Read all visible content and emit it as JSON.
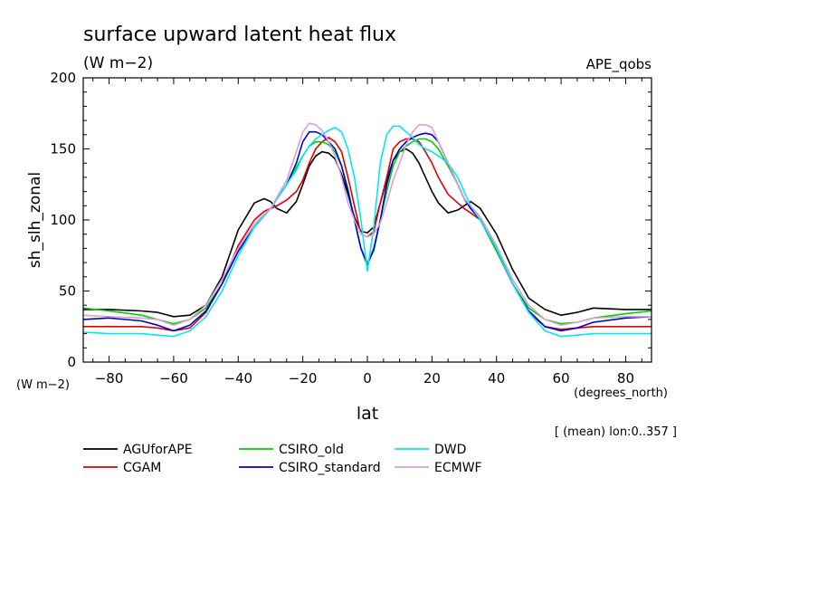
{
  "chart_data": {
    "type": "line",
    "title": "surface upward latent heat flux",
    "subtitle": "(W m−2)",
    "tag": "APE_qobs",
    "ylabel": "sh_slh_zonal",
    "y_unit": "(W m−2)",
    "xlabel": "lat",
    "x_unit": "(degrees_north)",
    "note": "[ (mean) lon:0..357 ]",
    "xlim": [
      -88,
      88
    ],
    "ylim": [
      0,
      200
    ],
    "x_ticks": [
      -80,
      -60,
      -40,
      -20,
      0,
      20,
      40,
      60,
      80
    ],
    "x_tick_labels": [
      "−80",
      "−60",
      "−40",
      "−20",
      "0",
      "20",
      "40",
      "60",
      "80"
    ],
    "y_ticks": [
      0,
      50,
      100,
      150,
      200
    ],
    "y_tick_labels": [
      "0",
      "50",
      "100",
      "150",
      "200"
    ],
    "grid": false,
    "legend_position": "bottom",
    "x": [
      -88,
      -80,
      -70,
      -65,
      -60,
      -55,
      -50,
      -45,
      -40,
      -35,
      -32,
      -30,
      -28,
      -25,
      -22,
      -20,
      -18,
      -16,
      -14,
      -12,
      -10,
      -8,
      -6,
      -4,
      -2,
      0,
      2,
      4,
      6,
      8,
      10,
      12,
      14,
      16,
      18,
      20,
      22,
      25,
      28,
      30,
      32,
      35,
      40,
      45,
      50,
      55,
      60,
      65,
      70,
      80,
      88
    ],
    "series": [
      {
        "name": "AGUforAPE",
        "color": "#000000",
        "values": [
          37,
          37,
          36,
          35,
          32,
          33,
          40,
          60,
          93,
          112,
          115,
          113,
          108,
          105,
          113,
          125,
          138,
          145,
          148,
          147,
          143,
          132,
          118,
          102,
          92,
          91,
          95,
          112,
          128,
          142,
          148,
          150,
          147,
          140,
          130,
          120,
          112,
          105,
          107,
          110,
          113,
          108,
          90,
          65,
          45,
          37,
          33,
          35,
          38,
          37,
          37
        ]
      },
      {
        "name": "CGAM",
        "color": "#e00000",
        "values": [
          25,
          25,
          25,
          24,
          22,
          24,
          35,
          55,
          82,
          100,
          106,
          108,
          110,
          114,
          120,
          128,
          140,
          150,
          155,
          158,
          155,
          148,
          130,
          110,
          90,
          88,
          92,
          112,
          130,
          150,
          155,
          157,
          157,
          155,
          148,
          140,
          130,
          118,
          112,
          108,
          105,
          100,
          80,
          55,
          35,
          25,
          23,
          24,
          25,
          25,
          25
        ]
      },
      {
        "name": "CSIRO_old",
        "color": "#00d000",
        "values": [
          38,
          36,
          33,
          30,
          27,
          30,
          38,
          55,
          78,
          95,
          103,
          108,
          115,
          125,
          137,
          145,
          152,
          155,
          155,
          153,
          148,
          138,
          122,
          100,
          80,
          70,
          78,
          100,
          120,
          138,
          148,
          152,
          155,
          157,
          157,
          155,
          150,
          138,
          125,
          115,
          108,
          100,
          78,
          55,
          38,
          30,
          27,
          28,
          31,
          34,
          36
        ]
      },
      {
        "name": "CSIRO_standard",
        "color": "#0000d0",
        "values": [
          30,
          31,
          29,
          26,
          22,
          26,
          36,
          55,
          78,
          95,
          103,
          108,
          115,
          125,
          140,
          155,
          162,
          162,
          160,
          155,
          150,
          138,
          120,
          100,
          80,
          68,
          80,
          100,
          125,
          142,
          150,
          155,
          158,
          160,
          161,
          160,
          155,
          140,
          125,
          115,
          108,
          100,
          80,
          55,
          36,
          25,
          22,
          24,
          28,
          31,
          32
        ]
      },
      {
        "name": "DWD",
        "color": "#00e8f0",
        "values": [
          21,
          20,
          20,
          19,
          18,
          22,
          32,
          50,
          75,
          95,
          103,
          108,
          115,
          125,
          135,
          145,
          152,
          157,
          160,
          163,
          165,
          162,
          150,
          130,
          100,
          64,
          95,
          140,
          160,
          166,
          166,
          162,
          158,
          153,
          150,
          148,
          145,
          140,
          130,
          120,
          110,
          100,
          80,
          55,
          35,
          22,
          18,
          19,
          20,
          20,
          20
        ]
      },
      {
        "name": "ECMWF",
        "color": "#d8a0d8",
        "values": [
          33,
          32,
          31,
          30,
          26,
          30,
          40,
          58,
          80,
          97,
          104,
          108,
          116,
          128,
          148,
          162,
          168,
          167,
          163,
          155,
          145,
          130,
          112,
          100,
          90,
          88,
          90,
          98,
          112,
          128,
          140,
          153,
          162,
          167,
          167,
          165,
          155,
          140,
          125,
          115,
          110,
          102,
          82,
          58,
          40,
          30,
          26,
          28,
          31,
          32,
          32
        ]
      }
    ]
  }
}
